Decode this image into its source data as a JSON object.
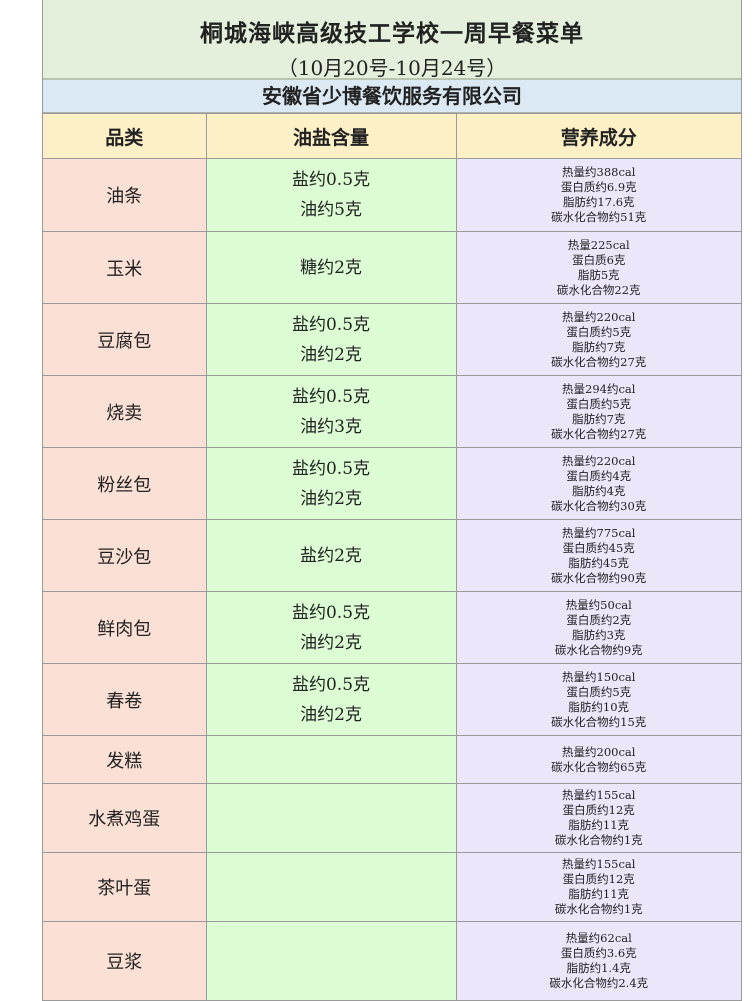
{
  "title": "桐城海峡高级技工学校一周早餐菜单",
  "date_range": "（10月20号-10月24号）",
  "company": "安徽省少博餐饮服务有限公司",
  "headers": [
    "品类",
    "油盐含量",
    "营养成分"
  ],
  "colors": {
    "title_bg": "#e4f0dc",
    "company_bg": "#dbe9f5",
    "header_bg": "#fdf0c6",
    "category_bg": "#fbe0d6",
    "oil_salt_bg": "#dcfcd4",
    "nutrition_bg": "#ece6fb"
  },
  "rows": [
    {
      "name": "油条",
      "oil_salt": [
        "盐约0.5克",
        "油约5克"
      ],
      "nutrition": [
        "热量约388cal",
        "蛋白质约6.9克",
        "脂肪约17.6克",
        "碳水化合物约51克"
      ]
    },
    {
      "name": "玉米",
      "oil_salt": [
        "糖约2克"
      ],
      "nutrition": [
        "热量225cal",
        "蛋白质6克",
        "脂肪5克",
        "碳水化合物22克"
      ]
    },
    {
      "name": "豆腐包",
      "oil_salt": [
        "盐约0.5克",
        "油约2克"
      ],
      "nutrition": [
        "热量约220cal",
        "蛋白质约5克",
        "脂肪约7克",
        "碳水化合物约27克"
      ]
    },
    {
      "name": "烧卖",
      "oil_salt": [
        "盐约0.5克",
        "油约3克"
      ],
      "nutrition": [
        "热量294约cal",
        "蛋白质约5克",
        "脂肪约7克",
        "碳水化合物约27克"
      ]
    },
    {
      "name": "粉丝包",
      "oil_salt": [
        "盐约0.5克",
        "油约2克"
      ],
      "nutrition": [
        "热量约220cal",
        "蛋白质约4克",
        "脂肪约4克",
        "碳水化合物约30克"
      ]
    },
    {
      "name": "豆沙包",
      "oil_salt": [
        "盐约2克"
      ],
      "nutrition": [
        "热量约775cal",
        "蛋白质约45克",
        "脂肪约45克",
        "碳水化合物约90克"
      ]
    },
    {
      "name": "鲜肉包",
      "oil_salt": [
        "盐约0.5克",
        "油约2克"
      ],
      "nutrition": [
        "热量约50cal",
        "蛋白质约2克",
        "脂肪约3克",
        "碳水化合物约9克"
      ]
    },
    {
      "name": "春卷",
      "oil_salt": [
        "盐约0.5克",
        "油约2克"
      ],
      "nutrition": [
        "热量约150cal",
        "蛋白质约5克",
        "脂肪约10克",
        "碳水化合物约15克"
      ]
    },
    {
      "name": "发糕",
      "oil_salt": [],
      "nutrition": [
        "热量约200cal",
        "碳水化合物约65克"
      ]
    },
    {
      "name": "水煮鸡蛋",
      "oil_salt": [],
      "nutrition": [
        "热量约155cal",
        "蛋白质约12克",
        "脂肪约11克",
        "碳水化合物约1克"
      ]
    },
    {
      "name": "茶叶蛋",
      "oil_salt": [],
      "nutrition": [
        "热量约155cal",
        "蛋白质约12克",
        "脂肪约11克",
        "碳水化合物约1克"
      ]
    },
    {
      "name": "豆浆",
      "oil_salt": [],
      "nutrition": [
        "热量约62cal",
        "蛋白质约3.6克",
        "脂肪约1.4克",
        "碳水化合物约2.4克"
      ]
    }
  ]
}
